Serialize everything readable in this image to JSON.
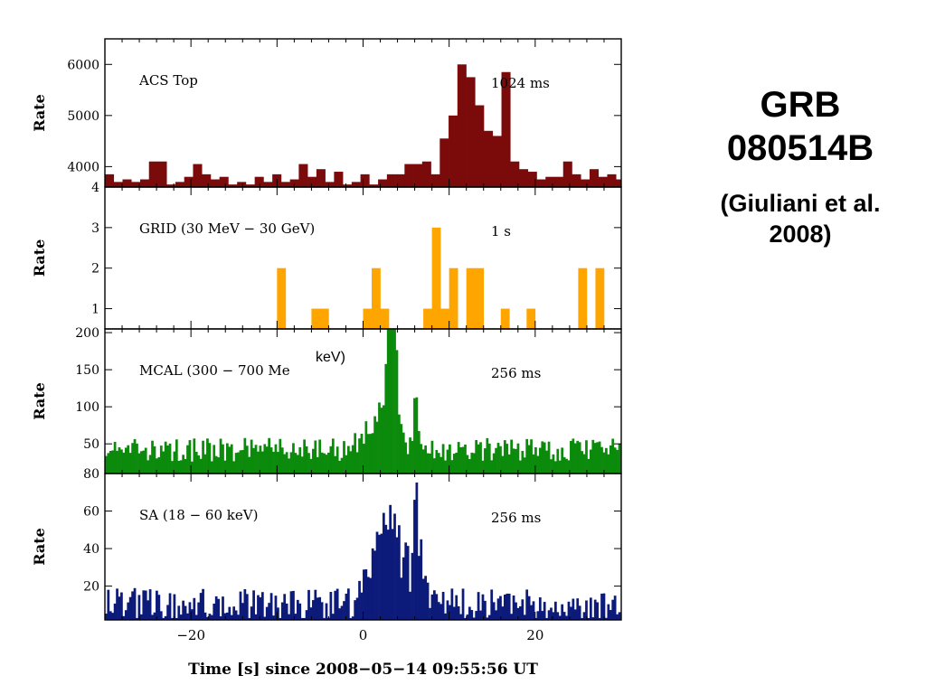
{
  "side_title": {
    "line1": "GRB",
    "line2": "080514B",
    "line3": "(Giuliani et al.",
    "line4": "2008)"
  },
  "overlay_label": "keV)",
  "chart_data": [
    {
      "type": "bar",
      "panel_label": "ACS Top",
      "bin_label": "1024 ms",
      "ylabel": "Rate",
      "color": "#7b0a0a",
      "ylim": [
        3600,
        6500
      ],
      "yticks": [
        4000,
        5000,
        6000
      ],
      "xlim": [
        -30,
        30
      ],
      "baseline": 3600,
      "bin_width": 1.024,
      "x_start": -30,
      "values": [
        3850,
        3700,
        3750,
        3700,
        3750,
        4100,
        4100,
        3650,
        3700,
        3800,
        4050,
        3850,
        3750,
        3800,
        3650,
        3700,
        3650,
        3800,
        3700,
        3850,
        3700,
        3750,
        4050,
        3800,
        3950,
        3700,
        3900,
        3650,
        3700,
        3850,
        3650,
        3750,
        3850,
        3850,
        4050,
        4050,
        4100,
        3850,
        4550,
        5000,
        6000,
        5750,
        5200,
        4700,
        4600,
        5850,
        4100,
        3950,
        3900,
        3750,
        3800,
        3800,
        4100,
        3850,
        3750,
        3950,
        3800,
        3850,
        3750,
        3950,
        3800,
        3650,
        3700
      ]
    },
    {
      "type": "bar",
      "panel_label": "GRID (30 MeV − 30 GeV)",
      "bin_label": "1 s",
      "ylabel": "Rate",
      "color": "#ffa500",
      "ylim": [
        0.5,
        4
      ],
      "yticks": [
        1,
        2,
        3,
        4
      ],
      "xlim": [
        -30,
        30
      ],
      "baseline": 0.5,
      "bins": [
        {
          "x": -10,
          "w": 1,
          "v": 2
        },
        {
          "x": -6,
          "w": 2,
          "v": 1
        },
        {
          "x": 0,
          "w": 1,
          "v": 1
        },
        {
          "x": 1,
          "w": 1,
          "v": 2
        },
        {
          "x": 2,
          "w": 1,
          "v": 1
        },
        {
          "x": 7,
          "w": 1,
          "v": 1
        },
        {
          "x": 8,
          "w": 1,
          "v": 3
        },
        {
          "x": 9,
          "w": 1,
          "v": 1
        },
        {
          "x": 10,
          "w": 1,
          "v": 2
        },
        {
          "x": 12,
          "w": 2,
          "v": 2
        },
        {
          "x": 16,
          "w": 1,
          "v": 1
        },
        {
          "x": 19,
          "w": 1,
          "v": 1
        },
        {
          "x": 25,
          "w": 1,
          "v": 2
        },
        {
          "x": 27,
          "w": 1,
          "v": 2
        }
      ]
    },
    {
      "type": "bar",
      "panel_label": "MCAL (300 − 700 Me",
      "bin_label": "256 ms",
      "ylabel": "Rate",
      "color": "#0b8a0b",
      "ylim": [
        10,
        205
      ],
      "yticks": [
        50,
        100,
        150,
        200
      ],
      "xlim": [
        -30,
        30
      ],
      "baseline": 10,
      "bin_width": 0.256,
      "burst": {
        "base": 42,
        "spread": 16,
        "seed": 7,
        "peaks": [
          [
            2.6,
            90,
            0.6
          ],
          [
            3.3,
            120,
            0.35
          ],
          [
            4.0,
            40,
            0.8
          ],
          [
            6.0,
            145,
            0.18
          ],
          [
            1.0,
            25,
            1.2
          ]
        ]
      }
    },
    {
      "type": "bar",
      "panel_label": "SA (18 − 60 keV)",
      "bin_label": "256 ms",
      "ylabel": "Rate",
      "color": "#0c1a7a",
      "ylim": [
        2,
        80
      ],
      "yticks": [
        20,
        40,
        60,
        80
      ],
      "xlim": [
        -30,
        30
      ],
      "baseline": 2,
      "bin_width": 0.256,
      "burst": {
        "base": 10,
        "spread": 9,
        "seed": 13,
        "peaks": [
          [
            1.5,
            22,
            1.2
          ],
          [
            3.0,
            32,
            1.0
          ],
          [
            4.5,
            18,
            0.9
          ],
          [
            5.9,
            62,
            0.15
          ],
          [
            6.5,
            22,
            0.5
          ]
        ]
      }
    }
  ],
  "x_axis": {
    "ticks": [
      -20,
      0,
      20
    ],
    "tick_labels": [
      "−20",
      "0",
      "20"
    ],
    "label": "Time [s] since 2008−05−14 09:55:56 UT"
  }
}
